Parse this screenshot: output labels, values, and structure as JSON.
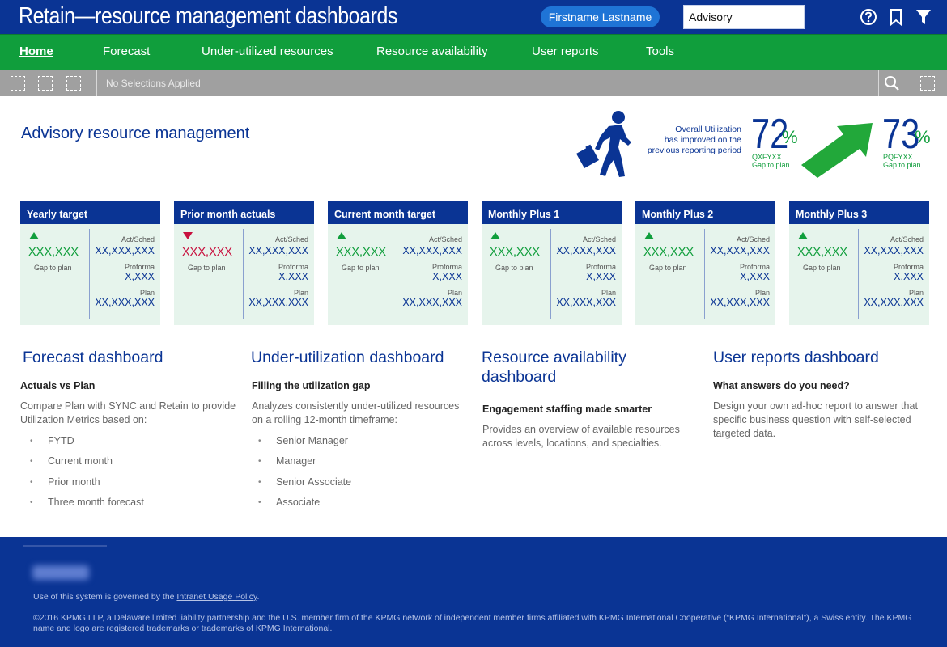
{
  "header": {
    "app_title": "Retain—resource management dashboards",
    "user_name": "Firstname Lastname",
    "practice_select": "Advisory",
    "icons": [
      "help-icon",
      "bookmark-icon",
      "filter-icon"
    ]
  },
  "nav": {
    "items": [
      {
        "label": "Home",
        "active": true
      },
      {
        "label": "Forecast"
      },
      {
        "label": "Under-utilized resources"
      },
      {
        "label": "Resource availability"
      },
      {
        "label": "User reports"
      },
      {
        "label": "Tools"
      }
    ]
  },
  "selection_bar": {
    "status": "No Selections Applied",
    "icons": [
      "selection-icon",
      "selection-icon",
      "selection-icon",
      "search-icon",
      "fullscreen-icon"
    ]
  },
  "hero": {
    "title": "Advisory resource management",
    "util_caption_1": "Overall Utilization",
    "util_caption_2": "has improved on the",
    "util_caption_3": "previous reporting period",
    "metric1": {
      "value": "72",
      "percent": "%",
      "code": "QXFYXX",
      "note": "Gap to plan"
    },
    "metric2": {
      "value": "73",
      "percent": "%",
      "code": "PQFYXX",
      "note": "Gap to plan"
    }
  },
  "cards": [
    {
      "title": "Yearly target",
      "trend": "up",
      "value": "XXX,XXX",
      "gap_label": "Gap to plan",
      "act_label": "Act/Sched",
      "act_value": "XX,XXX,XXX",
      "proforma_label": "Proforma",
      "proforma_value": "X,XXX",
      "plan_label": "Plan",
      "plan_value": "XX,XXX,XXX"
    },
    {
      "title": "Prior month actuals",
      "trend": "down",
      "value": "XXX,XXX",
      "gap_label": "Gap to plan",
      "act_label": "Act/Sched",
      "act_value": "XX,XXX,XXX",
      "proforma_label": "Proforma",
      "proforma_value": "X,XXX",
      "plan_label": "Plan",
      "plan_value": "XX,XXX,XXX"
    },
    {
      "title": "Current month target",
      "trend": "up",
      "value": "XXX,XXX",
      "gap_label": "Gap to plan",
      "act_label": "Act/Sched",
      "act_value": "XX,XXX,XXX",
      "proforma_label": "Proforma",
      "proforma_value": "X,XXX",
      "plan_label": "Plan",
      "plan_value": "XX,XXX,XXX"
    },
    {
      "title": "Monthly Plus 1",
      "trend": "up",
      "value": "XXX,XXX",
      "gap_label": "Gap to plan",
      "act_label": "Act/Sched",
      "act_value": "XX,XXX,XXX",
      "proforma_label": "Proforma",
      "proforma_value": "X,XXX",
      "plan_label": "Plan",
      "plan_value": "XX,XXX,XXX"
    },
    {
      "title": "Monthly Plus 2",
      "trend": "up",
      "value": "XXX,XXX",
      "gap_label": "Gap to plan",
      "act_label": "Act/Sched",
      "act_value": "XX,XXX,XXX",
      "proforma_label": "Proforma",
      "proforma_value": "X,XXX",
      "plan_label": "Plan",
      "plan_value": "XX,XXX,XXX"
    },
    {
      "title": "Monthly Plus 3",
      "trend": "up",
      "value": "XXX,XXX",
      "gap_label": "Gap to plan",
      "act_label": "Act/Sched",
      "act_value": "XX,XXX,XXX",
      "proforma_label": "Proforma",
      "proforma_value": "X,XXX",
      "plan_label": "Plan",
      "plan_value": "XX,XXX,XXX"
    }
  ],
  "sections": {
    "forecast": {
      "title": "Forecast dashboard",
      "subtitle": "Actuals vs Plan",
      "desc_1": "Compare Plan with SYNC and Retain to provide",
      "desc_2": "Utilization Metrics based on:",
      "items": [
        "FYTD",
        "Current month",
        "Prior month",
        "Three month forecast"
      ]
    },
    "underutil": {
      "title": "Under-utilization dashboard",
      "subtitle": "Filling the utilization gap",
      "desc_1": "Analyzes consistently under-utilized resources",
      "desc_2": "on a rolling 12-month timeframe:",
      "items": [
        "Senior Manager",
        "Manager",
        "Senior Associate",
        "Associate"
      ]
    },
    "availability": {
      "title_1": "Resource availability",
      "title_2": "dashboard",
      "subtitle": "Engagement staffing made smarter",
      "desc_1": "Provides an overview of available resources",
      "desc_2": "across levels, locations, and specialties."
    },
    "userreports": {
      "title": "User reports dashboard",
      "subtitle": "What answers do you need?",
      "desc_1": "Design your own ad-hoc report to answer that",
      "desc_2": "specific business question with self-selected",
      "desc_3": "targeted data."
    }
  },
  "footer": {
    "logo": "KPMG",
    "policy_prefix": "Use of this system is governed by the ",
    "policy_link": "Intranet Usage Policy",
    "policy_suffix": ".",
    "copyright": "©2016 KPMG LLP, a Delaware limited liability partnership and the U.S. member firm of the KPMG network of independent member firms affiliated with KPMG International Cooperative (“KPMG International”), a Swiss entity. The KPMG name and logo are registered trademarks or trademarks of KPMG International."
  },
  "colors": {
    "brand_blue": "#0a3494",
    "nav_green": "#109e3c",
    "pill_blue": "#1f74d6",
    "up_green": "#109e3c",
    "down_red": "#c8103e",
    "card_bg": "#e6f4ec",
    "selbar_gray": "#a0a0a0"
  }
}
